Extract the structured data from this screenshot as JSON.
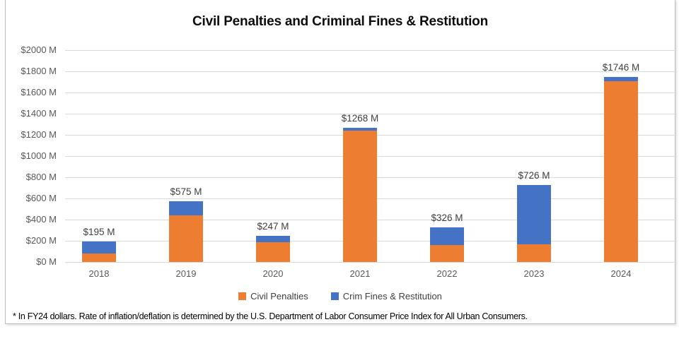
{
  "footnote": "* In FY24 dollars. Rate of inflation/deflation is determined by the U.S. Department of Labor Consumer Price Index for All Urban Consumers.",
  "colors": {
    "civil_penalties": "#ED7D31",
    "crim_fines": "#4472C4",
    "gridline": "#D9D9D9",
    "axis_text": "#595959",
    "data_label_text": "#404040",
    "border": "#BDBDBD"
  },
  "chart_data": {
    "type": "bar",
    "stacked": true,
    "title": "Civil Penalties and Criminal Fines & Restitution",
    "categories": [
      "2018",
      "2019",
      "2020",
      "2021",
      "2022",
      "2023",
      "2024"
    ],
    "series": [
      {
        "name": "Civil Penalties",
        "color": "#ED7D31",
        "values": [
          83,
          442,
          187,
          1237,
          160,
          168,
          1710
        ]
      },
      {
        "name": "Crim Fines & Restitution",
        "color": "#4472C4",
        "values": [
          112,
          133,
          60,
          31,
          166,
          558,
          36
        ]
      }
    ],
    "totals": [
      195,
      575,
      247,
      1268,
      326,
      726,
      1746
    ],
    "total_labels": [
      "$195 M",
      "$575 M",
      "$247 M",
      "$1268 M",
      "$326 M",
      "$726 M",
      "$1746 M"
    ],
    "xlabel": "",
    "ylabel": "",
    "ylim": [
      0,
      2000
    ],
    "y_tick_step": 200,
    "y_tick_labels_top_to_bottom": [
      "$2000 M",
      "$1800 M",
      "$1600 M",
      "$1400 M",
      "$1200 M",
      "$1000 M",
      "$800 M",
      "$600 M",
      "$400 M",
      "$200 M",
      "$0 M"
    ],
    "grid": true,
    "legend_position": "bottom"
  }
}
